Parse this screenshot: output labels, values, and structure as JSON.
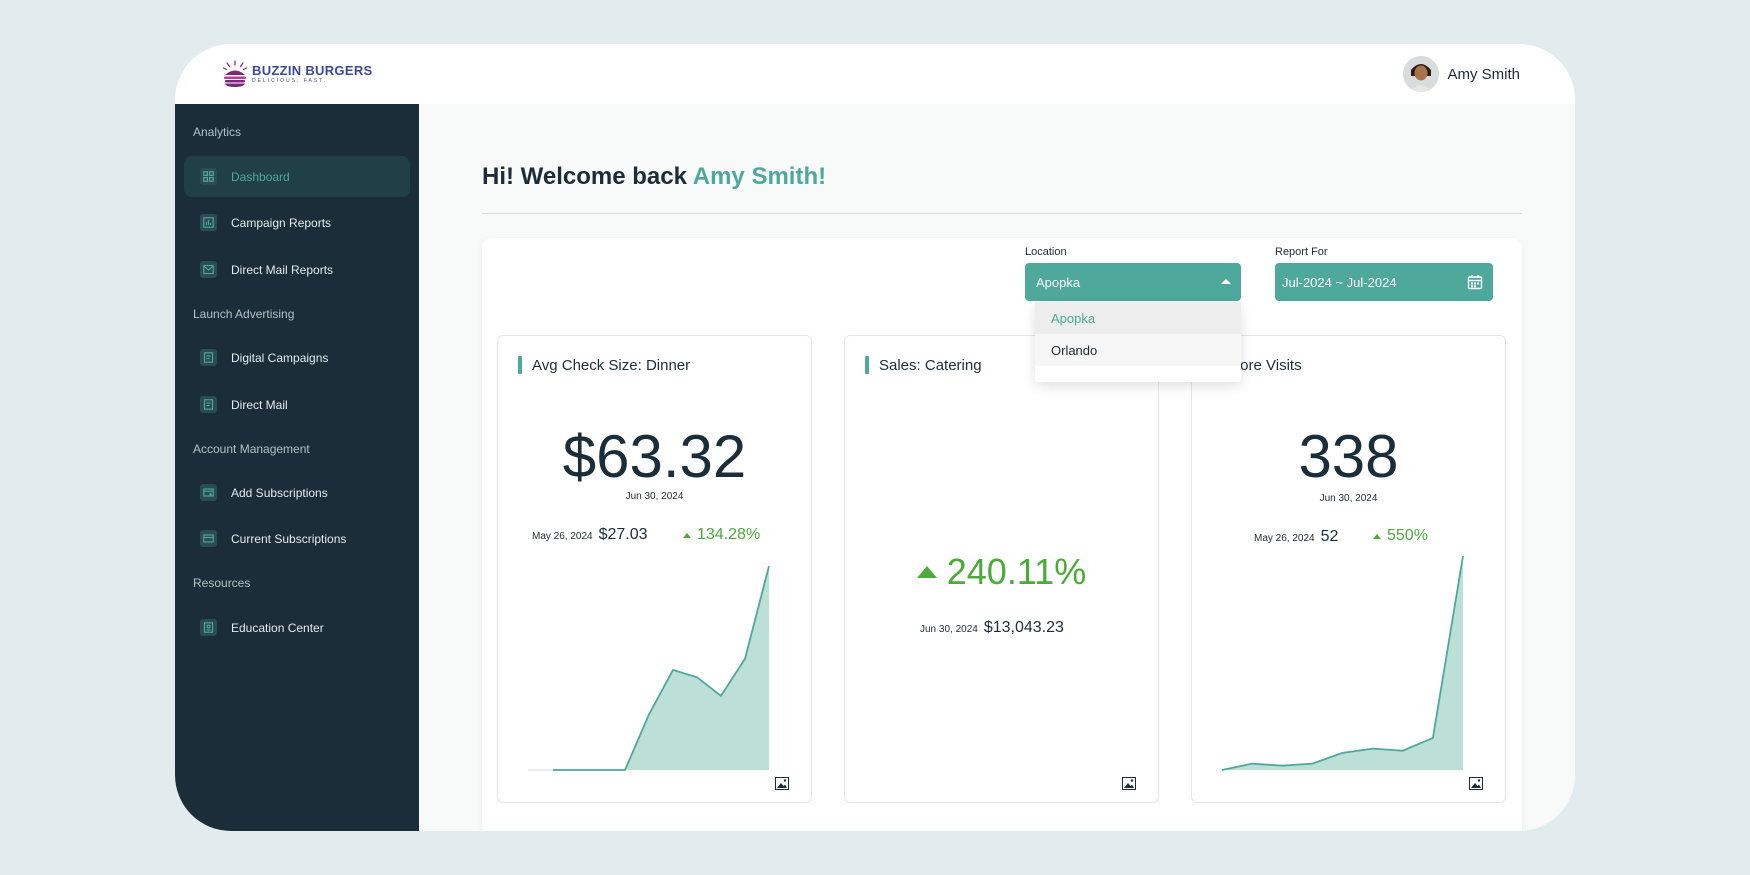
{
  "brand": {
    "name": "BUZZIN BURGERS",
    "tagline": "DELICIOUS. FAST."
  },
  "user": {
    "name": "Amy Smith"
  },
  "sidebar": {
    "sections": [
      {
        "label": "Analytics",
        "items": [
          {
            "label": "Dashboard",
            "icon": "grid-icon",
            "active": true
          },
          {
            "label": "Campaign Reports",
            "icon": "bar-chart-icon"
          },
          {
            "label": "Direct Mail Reports",
            "icon": "mail-icon"
          }
        ]
      },
      {
        "label": "Launch Advertising",
        "items": [
          {
            "label": "Digital Campaigns",
            "icon": "document-icon"
          },
          {
            "label": "Direct Mail",
            "icon": "document-icon"
          }
        ]
      },
      {
        "label": "Account Management",
        "items": [
          {
            "label": "Add Subscriptions",
            "icon": "card-add-icon"
          },
          {
            "label": "Current Subscriptions",
            "icon": "card-icon"
          }
        ]
      },
      {
        "label": "Resources",
        "items": [
          {
            "label": "Education Center",
            "icon": "education-icon"
          }
        ]
      }
    ]
  },
  "welcome": {
    "prefix": "Hi! Welcome back ",
    "name": "Amy Smith!"
  },
  "filters": {
    "location": {
      "label": "Location",
      "value": "Apopka",
      "options": [
        "Apopka",
        "Orlando"
      ]
    },
    "report_for": {
      "label": "Report For",
      "value": "Jul-2024 ~ Jul-2024"
    }
  },
  "cards": [
    {
      "title": "Avg Check Size: Dinner",
      "value": "$63.32",
      "date": "Jun 30, 2024",
      "compare_date": "May 26, 2024",
      "compare_value": "$27.03",
      "change": "134.28%"
    },
    {
      "title": "Sales: Catering",
      "change": "240.11%",
      "date": "Jun 30, 2024",
      "value": "$13,043.23"
    },
    {
      "title": "Store Visits",
      "value": "338",
      "date": "Jun 30, 2024",
      "compare_date": "May 26, 2024",
      "compare_value": "52",
      "change": "550%"
    }
  ],
  "chart_data": [
    {
      "type": "area",
      "series": [
        {
          "values": [
            0,
            0,
            0,
            0,
            15,
            27,
            25,
            20,
            30,
            55
          ]
        }
      ]
    },
    {
      "type": "area",
      "series": [
        {
          "values": [
            0,
            3,
            2,
            3,
            8,
            10,
            9,
            15,
            100
          ]
        }
      ]
    }
  ],
  "colors": {
    "accent": "#4ea89c",
    "sidebar": "#1b2d38",
    "positive": "#4bab39"
  }
}
